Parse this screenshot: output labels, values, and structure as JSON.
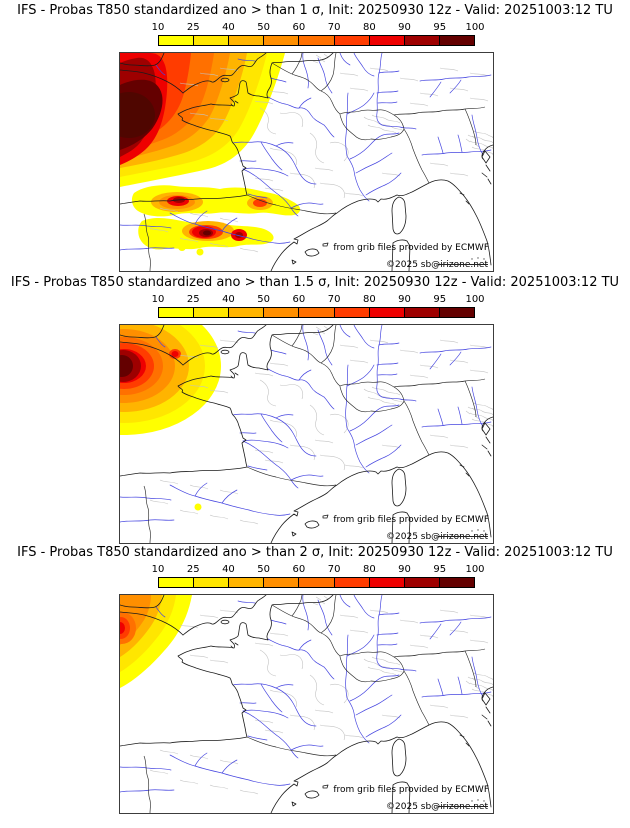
{
  "page_background": "#ffffff",
  "colorbar": {
    "ticks": [
      "10",
      "25",
      "40",
      "50",
      "60",
      "70",
      "80",
      "90",
      "95",
      "100"
    ],
    "colors": [
      "#ffff00",
      "#ffe600",
      "#ffb400",
      "#ff8f00",
      "#ff7000",
      "#ff3c00",
      "#ee0000",
      "#9e0000",
      "#640000"
    ],
    "core_color": "#4f0600",
    "units": "%"
  },
  "panels": [
    {
      "title": "IFS - Probas T850  standardized ano > than 1 σ, Init: 20250930 12z - Valid: 20251003:12 TU",
      "threshold_sigma": "1",
      "attribution_line1": "from grib files provided by ECMWF",
      "attribution_line2": "©2025 sb@irizone.net"
    },
    {
      "title": "IFS - Probas T850  standardized ano > than 1.5 σ, Init: 20250930 12z - Valid: 20251003:12 TU",
      "threshold_sigma": "1.5",
      "attribution_line1": "from grib files provided by ECMWF",
      "attribution_line2": "©2025 sb@irizone.net"
    },
    {
      "title": "IFS - Probas T850  standardized ano > than 2 σ, Init: 20250930 12z - Valid: 20251003:12 TU",
      "threshold_sigma": "2",
      "attribution_line1": "from grib files provided by ECMWF",
      "attribution_line2": "©2025 sb@irizone.net"
    }
  ],
  "map_data": {
    "type": "probability-map",
    "model": "IFS",
    "variable": "T850 standardized anomaly exceedance probability",
    "init": "20250930 12z",
    "valid": "20251003:12 TU",
    "region": "Western Europe (British Isles, France, Iberia, Alps, northern Italy)",
    "colorbar_range": [
      10,
      100
    ],
    "panel_maxima": [
      "Very large >95% maximum over the Atlantic west of Brittany spreading across southern England and western France; wavy 10-95% bands with embedded dark-red cores across northern Spain",
      "Compact >95% maximum over the Atlantic southwest of Cornwall, yellow edge reaching Cornwall; tiny 10-25% spot in northeastern Spain",
      "Small maximum up to ~80-90% hugging the northwest map edge over the Atlantic"
    ]
  }
}
